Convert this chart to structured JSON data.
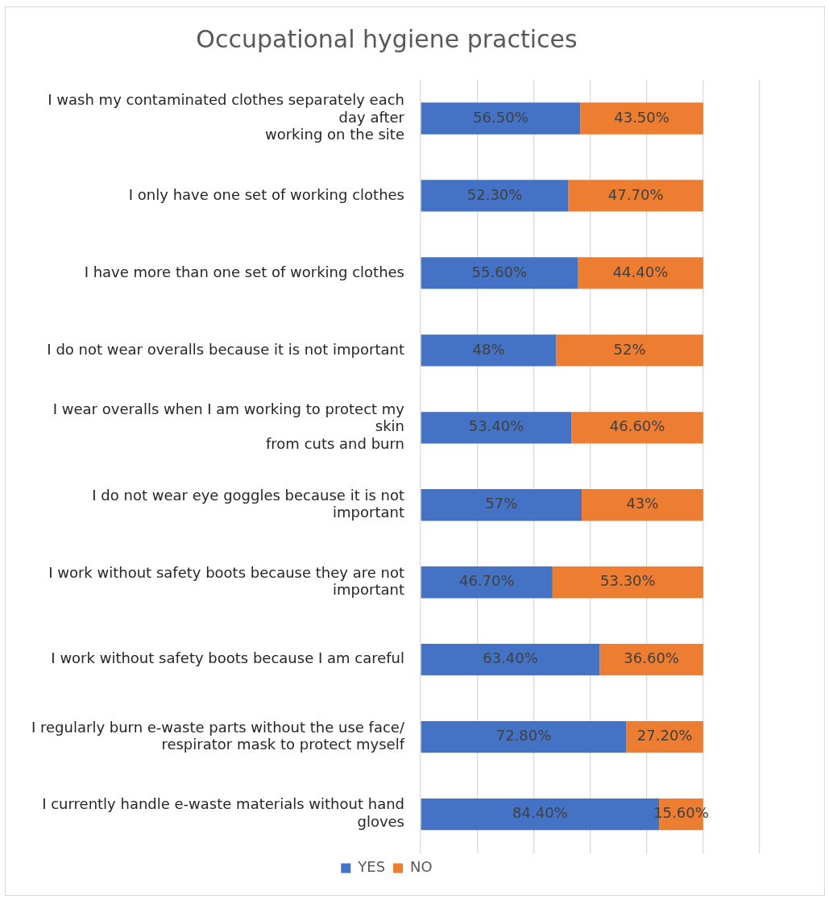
{
  "chart_data": {
    "type": "bar",
    "title": "Occupational hygiene practices",
    "orientation": "horizontal",
    "stacked": true,
    "categories": [
      "I wash my contaminated clothes separately each day after\nworking on the site",
      "I only have one set of working clothes",
      "I have more than one set of working clothes",
      "I do not wear overalls because it is not important",
      "I wear overalls when I am working to protect my skin\nfrom cuts and burn",
      "I do not wear eye goggles because it is not important",
      "I work without safety boots because they are not important",
      "I work without safety boots because I am careful",
      "I regularly burn e-waste parts without the use face/\nrespirator mask to protect myself",
      "I currently handle e-waste materials without hand gloves"
    ],
    "series": [
      {
        "name": "YES",
        "color": "#4472c4",
        "values": [
          56.5,
          52.3,
          55.6,
          48,
          53.4,
          57,
          46.7,
          63.4,
          72.8,
          84.4
        ],
        "value_labels": [
          "56.50%",
          "52.30%",
          "55.60%",
          "48%",
          "53.40%",
          "57%",
          "46.70%",
          "63.40%",
          "72.80%",
          "84.40%"
        ]
      },
      {
        "name": "NO",
        "color": "#ed7d31",
        "values": [
          43.5,
          47.7,
          44.4,
          52,
          46.6,
          43,
          53.3,
          36.6,
          27.2,
          15.6
        ],
        "value_labels": [
          "43.50%",
          "47.70%",
          "44.40%",
          "52%",
          "46.60%",
          "43%",
          "53.30%",
          "36.60%",
          "27.20%",
          "15.60%"
        ]
      }
    ],
    "xlim": [
      0,
      120
    ],
    "xticks": [
      {
        "value": 0,
        "label": null
      },
      {
        "value": 20,
        "label": null
      },
      {
        "value": 40,
        "label": null
      },
      {
        "value": 60,
        "label": null
      },
      {
        "value": 80,
        "label": null
      },
      {
        "value": 100,
        "label": null
      },
      {
        "value": 120,
        "label": null
      }
    ],
    "tick_labels": "y",
    "grid": "x",
    "legend": "bottom"
  }
}
